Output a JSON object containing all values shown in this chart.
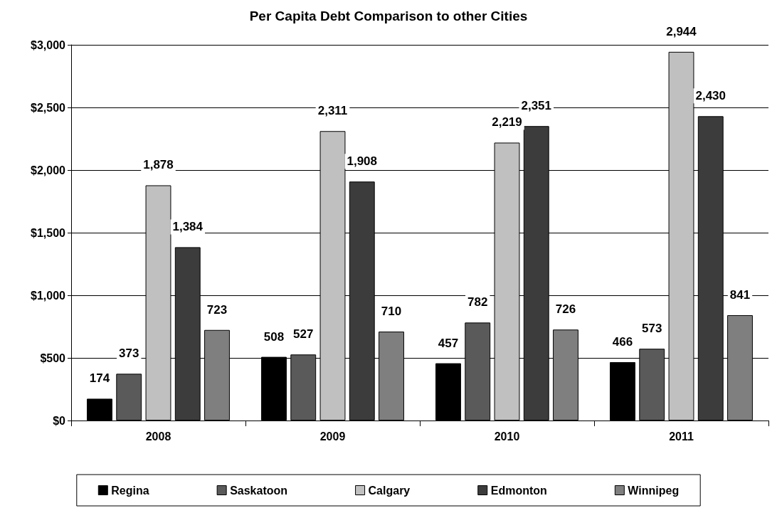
{
  "chart_data": {
    "type": "bar",
    "title": "Per Capita Debt Comparison to other Cities",
    "categories": [
      "2008",
      "2009",
      "2010",
      "2011"
    ],
    "series": [
      {
        "name": "Regina",
        "color": "#000000",
        "values": [
          174,
          508,
          457,
          466
        ],
        "value_labels": [
          "174",
          "508",
          "457",
          "466"
        ]
      },
      {
        "name": "Saskatoon",
        "color": "#5a5a5a",
        "values": [
          373,
          527,
          782,
          573
        ],
        "value_labels": [
          "373",
          "527",
          "782",
          "573"
        ]
      },
      {
        "name": "Calgary",
        "color": "#c0c0c0",
        "values": [
          1878,
          2311,
          2219,
          2944
        ],
        "value_labels": [
          "1,878",
          "2,311",
          "2,219",
          "2,944"
        ]
      },
      {
        "name": "Edmonton",
        "color": "#3c3c3c",
        "values": [
          1384,
          1908,
          2351,
          2430
        ],
        "value_labels": [
          "1,384",
          "1,908",
          "2,351",
          "2,430"
        ]
      },
      {
        "name": "Winnipeg",
        "color": "#7f7f7f",
        "values": [
          723,
          710,
          726,
          841
        ],
        "value_labels": [
          "723",
          "710",
          "726",
          "841"
        ]
      }
    ],
    "ylim": [
      0,
      3000
    ],
    "yticks": [
      {
        "value": 0,
        "label": "$0"
      },
      {
        "value": 500,
        "label": "$500"
      },
      {
        "value": 1000,
        "label": "$1,000"
      },
      {
        "value": 1500,
        "label": "$1,500"
      },
      {
        "value": 2000,
        "label": "$2,000"
      },
      {
        "value": 2500,
        "label": "$2,500"
      },
      {
        "value": 3000,
        "label": "$3,000"
      }
    ],
    "grid": "y",
    "legend": "bottom"
  }
}
